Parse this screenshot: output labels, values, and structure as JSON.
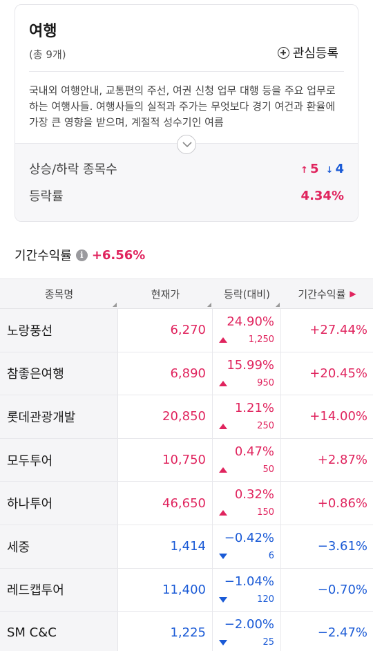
{
  "header": {
    "title": "여행",
    "count": "(총 9개)",
    "watch_label": "관심등록",
    "description": "국내외 여행안내, 교통편의 주선, 여권 신청 업무 대행 등을 주요 업무로 하는 여행사들. 여행사들의 실적과 주가는 무엇보다 경기 여건과 환율에 가장 큰 영향을 받으며, 계절적 성수기인 여름"
  },
  "stats": {
    "updown_label": "상승/하락 종목수",
    "up_arrow": "↑",
    "up_count": "5",
    "down_arrow": "↓",
    "down_count": "4",
    "rate_label": "등락률",
    "rate_value": "4.34%"
  },
  "period": {
    "label": "기간수익률",
    "info_icon": "i",
    "value": "+6.56%"
  },
  "table": {
    "headers": [
      "종목명",
      "현재가",
      "등락(대비)",
      "기간수익률"
    ],
    "header_arrow": "▶",
    "rows": [
      {
        "name": "노랑풍선",
        "price": "6,270",
        "pct": "24.90%",
        "amt": "1,250",
        "ret": "+27.44%",
        "dir": "up"
      },
      {
        "name": "참좋은여행",
        "price": "6,890",
        "pct": "15.99%",
        "amt": "950",
        "ret": "+20.45%",
        "dir": "up"
      },
      {
        "name": "롯데관광개발",
        "price": "20,850",
        "pct": "1.21%",
        "amt": "250",
        "ret": "+14.00%",
        "dir": "up"
      },
      {
        "name": "모두투어",
        "price": "10,750",
        "pct": "0.47%",
        "amt": "50",
        "ret": "+2.87%",
        "dir": "up"
      },
      {
        "name": "하나투어",
        "price": "46,650",
        "pct": "0.32%",
        "amt": "150",
        "ret": "+0.86%",
        "dir": "up"
      },
      {
        "name": "세중",
        "price": "1,414",
        "pct": "−0.42%",
        "amt": "6",
        "ret": "−3.61%",
        "dir": "down"
      },
      {
        "name": "레드캡투어",
        "price": "11,400",
        "pct": "−1.04%",
        "amt": "120",
        "ret": "−0.70%",
        "dir": "down"
      },
      {
        "name": "SM C&C",
        "price": "1,225",
        "pct": "−2.00%",
        "amt": "25",
        "ret": "−2.47%",
        "dir": "down"
      }
    ]
  },
  "colors": {
    "up": "#e0245e",
    "down": "#1a5ad6"
  }
}
